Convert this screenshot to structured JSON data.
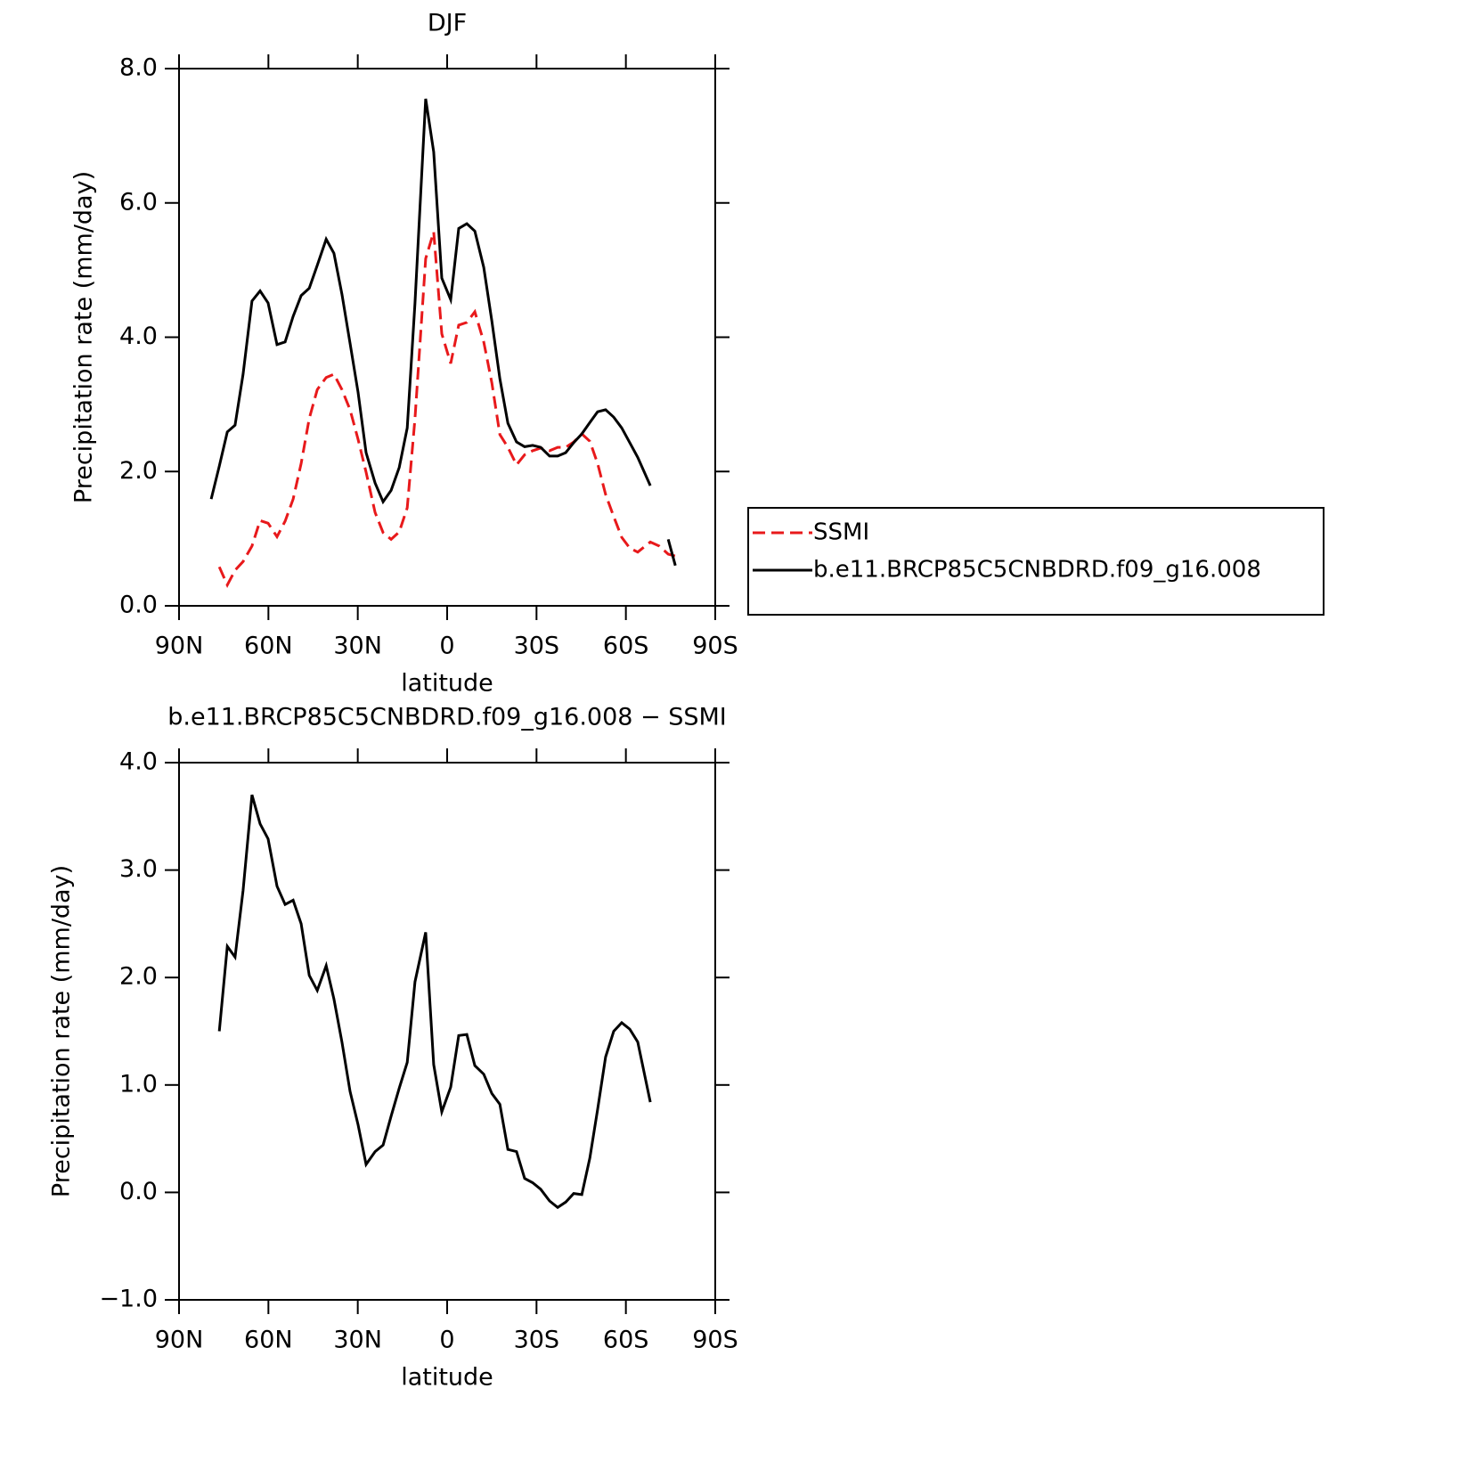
{
  "chart_data": [
    {
      "type": "line",
      "title": "DJF",
      "xlabel": "latitude",
      "ylabel": "Precipitation rate (mm/day)",
      "x": [
        79.2,
        76.5,
        73.8,
        71.2,
        68.5,
        65.5,
        62.8,
        60.1,
        57.1,
        54.4,
        51.7,
        49.0,
        46.3,
        43.6,
        40.6,
        38.0,
        35.3,
        32.6,
        29.9,
        27.2,
        24.2,
        21.5,
        18.8,
        16.1,
        13.4,
        10.8,
        7.2,
        4.5,
        1.8,
        -1.2,
        -3.9,
        -6.6,
        -9.3,
        -12.3,
        -15.0,
        -17.7,
        -20.4,
        -23.3,
        -26.0,
        -28.7,
        -31.4,
        -34.4,
        -37.1,
        -39.8,
        -42.5,
        -45.2,
        -47.9,
        -50.5,
        -53.2,
        -55.9,
        -58.6,
        -61.3,
        -64.0,
        -68.2,
        -71.2,
        -74.2,
        -76.6
      ],
      "series": [
        {
          "name": "SSMI",
          "color": "#e8191b",
          "dashed": true,
          "values": [
            null,
            0.58,
            0.31,
            0.53,
            0.66,
            0.89,
            1.27,
            1.23,
            1.03,
            1.26,
            1.59,
            2.12,
            2.79,
            3.22,
            3.4,
            3.45,
            3.22,
            2.92,
            2.48,
            1.99,
            1.39,
            1.09,
            0.99,
            1.1,
            1.46,
            2.79,
            5.17,
            5.57,
            4.05,
            3.61,
            4.18,
            4.22,
            4.38,
            3.93,
            3.32,
            2.55,
            2.36,
            2.1,
            2.25,
            2.31,
            2.35,
            2.31,
            2.36,
            2.36,
            2.44,
            2.56,
            2.45,
            2.12,
            1.66,
            1.33,
            1.02,
            0.86,
            0.8,
            0.95,
            0.89,
            0.77,
            0.74
          ]
        },
        {
          "name": "b.e11.BRCP85C5CNBDRD.f09_g16.008",
          "color": "#000000",
          "dashed": false,
          "values": [
            1.59,
            2.08,
            2.59,
            2.69,
            3.45,
            4.54,
            4.69,
            4.51,
            3.89,
            3.93,
            4.31,
            4.62,
            4.73,
            5.07,
            5.46,
            5.25,
            4.64,
            3.91,
            3.18,
            2.28,
            1.83,
            1.55,
            1.72,
            2.06,
            2.65,
            4.51,
            7.55,
            6.76,
            4.88,
            4.56,
            5.62,
            5.69,
            5.58,
            5.04,
            4.24,
            3.38,
            2.72,
            2.44,
            2.37,
            2.39,
            2.36,
            2.23,
            2.23,
            2.28,
            2.43,
            2.56,
            2.73,
            2.89,
            2.92,
            2.81,
            2.65,
            2.43,
            2.21,
            1.79,
            null,
            0.99,
            0.6
          ]
        }
      ],
      "xlim": [
        90,
        -90
      ],
      "xticks": [
        {
          "value": 90,
          "label": "90N"
        },
        {
          "value": 60,
          "label": "60N"
        },
        {
          "value": 30,
          "label": "30N"
        },
        0,
        {
          "value": -30,
          "label": "30S"
        },
        {
          "value": -60,
          "label": "60S"
        },
        {
          "value": -90,
          "label": "90S"
        }
      ],
      "ylim": [
        0,
        8
      ],
      "yticks": [
        {
          "value": 0,
          "label": "0.0"
        },
        {
          "value": 2,
          "label": "2.0"
        },
        {
          "value": 4,
          "label": "4.0"
        },
        {
          "value": 6,
          "label": "6.0"
        },
        {
          "value": 8,
          "label": "8.0"
        }
      ],
      "legend": "right"
    },
    {
      "type": "line",
      "title": "b.e11.BRCP85C5CNBDRD.f09_g16.008 − SSMI",
      "xlabel": "latitude",
      "ylabel": "Precipitation rate (mm/day)",
      "x": [
        76.5,
        73.8,
        71.2,
        68.5,
        65.5,
        62.8,
        60.1,
        57.1,
        54.4,
        51.7,
        49.0,
        46.3,
        43.6,
        40.6,
        38.0,
        35.3,
        32.6,
        29.9,
        27.2,
        24.2,
        21.5,
        18.8,
        16.1,
        13.4,
        10.8,
        7.2,
        4.5,
        1.8,
        -1.2,
        -3.9,
        -6.6,
        -9.3,
        -12.3,
        -15.0,
        -17.7,
        -20.4,
        -23.3,
        -26.0,
        -28.7,
        -31.4,
        -34.4,
        -37.1,
        -39.8,
        -42.5,
        -45.2,
        -47.9,
        -50.5,
        -53.2,
        -55.9,
        -58.6,
        -61.3,
        -64.0,
        -68.2
      ],
      "values": [
        1.5,
        2.29,
        2.19,
        2.81,
        3.7,
        3.43,
        3.29,
        2.85,
        2.68,
        2.72,
        2.5,
        2.02,
        1.88,
        2.11,
        1.8,
        1.4,
        0.94,
        0.63,
        0.26,
        0.38,
        0.44,
        0.71,
        0.97,
        1.21,
        1.96,
        2.42,
        1.19,
        0.75,
        0.98,
        1.46,
        1.47,
        1.18,
        1.1,
        0.92,
        0.82,
        0.4,
        0.38,
        0.13,
        0.09,
        0.03,
        -0.08,
        -0.14,
        -0.09,
        -0.01,
        -0.02,
        0.32,
        0.77,
        1.26,
        1.5,
        1.58,
        1.52,
        1.4,
        0.84
      ],
      "color": "#000000",
      "xlim": [
        90,
        -90
      ],
      "xticks": [
        {
          "value": 90,
          "label": "90N"
        },
        {
          "value": 60,
          "label": "60N"
        },
        {
          "value": 30,
          "label": "30N"
        },
        0,
        {
          "value": -30,
          "label": "30S"
        },
        {
          "value": -60,
          "label": "60S"
        },
        {
          "value": -90,
          "label": "90S"
        }
      ],
      "ylim": [
        -1,
        4
      ],
      "yticks": [
        {
          "value": -1,
          "label": "−1.0"
        },
        {
          "value": 0,
          "label": "0.0"
        },
        {
          "value": 1,
          "label": "1.0"
        },
        {
          "value": 2,
          "label": "2.0"
        },
        {
          "value": 3,
          "label": "3.0"
        },
        {
          "value": 4,
          "label": "4.0"
        }
      ]
    }
  ]
}
